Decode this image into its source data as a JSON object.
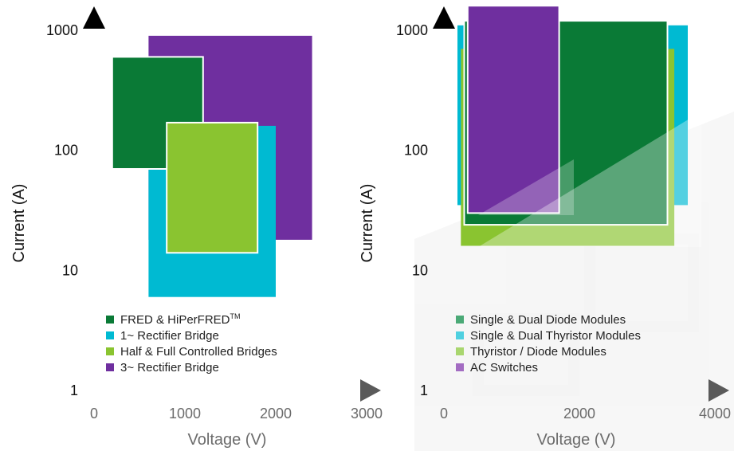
{
  "colors": {
    "axis": "#000000",
    "axis_fade": "#ffffff",
    "tick_text": "#000000",
    "label_text": "#4a4a4a",
    "dark_green": "#0a7a36",
    "cyan": "#00bad2",
    "light_green": "#8ac430",
    "purple": "#6f2f9f",
    "overlay": "#ffffff"
  },
  "chart_data": [
    {
      "id": "left",
      "type": "range-rectangles",
      "xlabel": "Voltage (V)",
      "ylabel": "Current (A)",
      "xlim": [
        0,
        3000
      ],
      "ylim": [
        1,
        1000
      ],
      "yscale": "log",
      "xticks": [
        {
          "value": 0,
          "label": "0"
        },
        {
          "value": 1000,
          "label": "1000"
        },
        {
          "value": 2000,
          "label": "2000"
        },
        {
          "value": 3000,
          "label": "3000"
        }
      ],
      "yticks": [
        {
          "value": 1,
          "label": "1"
        },
        {
          "value": 10,
          "label": "10"
        },
        {
          "value": 100,
          "label": "100"
        },
        {
          "value": 1000,
          "label": "1000"
        }
      ],
      "legend_position": "bottom-left",
      "legend": [
        {
          "label": "FRED & HiPerFRED",
          "sup": "TM",
          "color": "#0a7a36"
        },
        {
          "label": "1~ Rectifier Bridge",
          "color": "#00bad2"
        },
        {
          "label": "Half & Full Controlled Bridges",
          "color": "#8ac430"
        },
        {
          "label": "3~ Rectifier Bridge",
          "color": "#6f2f9f"
        }
      ],
      "series": [
        {
          "name": "3~ Rectifier Bridge",
          "color": "#6f2f9f",
          "x_range": [
            600,
            2400
          ],
          "y_range": [
            18,
            900
          ],
          "opacity": 1,
          "outline": false
        },
        {
          "name": "1~ Rectifier Bridge",
          "color": "#00bad2",
          "x_range": [
            600,
            2000
          ],
          "y_range": [
            6,
            160
          ],
          "opacity": 1,
          "outline": false
        },
        {
          "name": "FRED & HiPerFRED",
          "color": "#0a7a36",
          "x_range": [
            200,
            1200
          ],
          "y_range": [
            70,
            600
          ],
          "opacity": 1,
          "outline": true
        },
        {
          "name": "Half & Full Controlled Bridges",
          "color": "#8ac430",
          "x_range": [
            800,
            1800
          ],
          "y_range": [
            14,
            170
          ],
          "opacity": 1,
          "outline": true
        }
      ]
    },
    {
      "id": "right",
      "type": "range-rectangles",
      "xlabel": "Voltage (V)",
      "ylabel": "Current (A)",
      "xlim": [
        0,
        4000
      ],
      "ylim": [
        1,
        1000
      ],
      "yscale": "log",
      "xticks": [
        {
          "value": 0,
          "label": "0"
        },
        {
          "value": 2000,
          "label": "2000"
        },
        {
          "value": 4000,
          "label": "4000"
        }
      ],
      "yticks": [
        {
          "value": 1,
          "label": "1"
        },
        {
          "value": 10,
          "label": "10"
        },
        {
          "value": 100,
          "label": "100"
        },
        {
          "value": 1000,
          "label": "1000"
        }
      ],
      "legend_position": "bottom-left",
      "legend": [
        {
          "label": "Single & Dual Diode Modules",
          "color": "#4aa976"
        },
        {
          "label": "Single & Dual Thyristor Modules",
          "color": "#4fd0e0"
        },
        {
          "label": "Thyristor / Diode Modules",
          "color": "#a9d66f"
        },
        {
          "label": "AC Switches",
          "color": "#a36cc2"
        }
      ],
      "series": [
        {
          "name": "Single & Dual Thyristor Modules",
          "color": "#00bad2",
          "x_range": [
            200,
            3600
          ],
          "y_range": [
            35,
            1100
          ],
          "opacity": 1,
          "outline": false
        },
        {
          "name": "Thyristor / Diode Modules",
          "color": "#8ac430",
          "x_range": [
            250,
            3400
          ],
          "y_range": [
            16,
            700
          ],
          "opacity": 1,
          "outline": false
        },
        {
          "name": "Single & Dual Diode Modules",
          "color": "#0a7a36",
          "x_range": [
            300,
            3300
          ],
          "y_range": [
            24,
            1200
          ],
          "opacity": 1,
          "outline": true
        },
        {
          "name": "AC Switches",
          "color": "#6f2f9f",
          "x_range": [
            350,
            1700
          ],
          "y_range": [
            30,
            1600
          ],
          "opacity": 1,
          "outline": true
        }
      ]
    }
  ]
}
